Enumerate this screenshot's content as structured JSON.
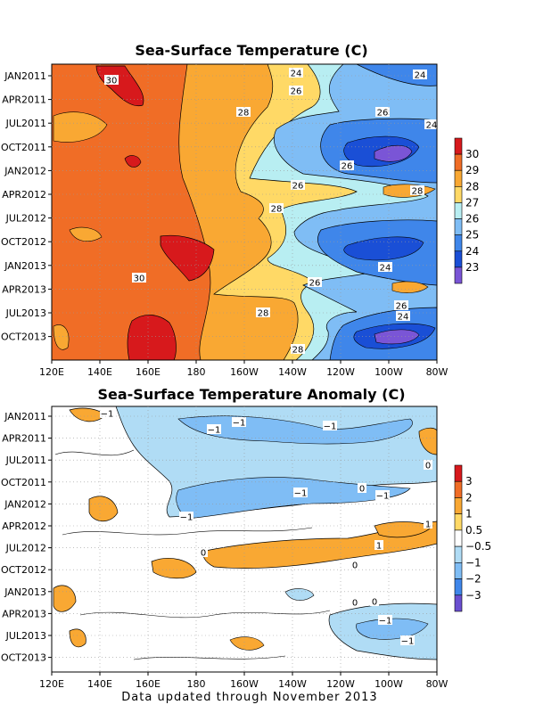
{
  "footer": "Data updated through November 2013",
  "chart_data": [
    {
      "type": "heatmap",
      "title": "Sea-Surface Temperature (C)",
      "x_ticks": [
        "120E",
        "140E",
        "160E",
        "180",
        "160W",
        "140W",
        "120W",
        "100W",
        "80W"
      ],
      "y_ticks": [
        "JAN2011",
        "APR2011",
        "JUL2011",
        "OCT2011",
        "JAN2012",
        "APR2012",
        "JUL2012",
        "OCT2012",
        "JAN2013",
        "APR2013",
        "JUL2013",
        "OCT2013"
      ],
      "colorbar": {
        "ticks": [
          "30",
          "29",
          "28",
          "27",
          "26",
          "25",
          "24",
          "23"
        ],
        "colors": [
          "#d7191c",
          "#f06d26",
          "#f9a833",
          "#ffd966",
          "#b8eef2",
          "#7fbdf5",
          "#3f86ea",
          "#1a4fd6",
          "#7a55d6"
        ]
      },
      "contour_labels": [
        "30",
        "24",
        "26",
        "28",
        "26",
        "24",
        "24",
        "26",
        "26",
        "28",
        "28",
        "24",
        "30",
        "26",
        "28",
        "26",
        "24",
        "28"
      ]
    },
    {
      "type": "heatmap",
      "title": "Sea-Surface Temperature Anomaly (C)",
      "x_ticks": [
        "120E",
        "140E",
        "160E",
        "180",
        "160W",
        "140W",
        "120W",
        "100W",
        "80W"
      ],
      "y_ticks": [
        "JAN2011",
        "APR2011",
        "JUL2011",
        "OCT2011",
        "JAN2012",
        "APR2012",
        "JUL2012",
        "OCT2012",
        "JAN2013",
        "APR2013",
        "JUL2013",
        "OCT2013"
      ],
      "colorbar": {
        "ticks": [
          "3",
          "2",
          "1",
          "0.5",
          "−0.5",
          "−1",
          "−2",
          "−3"
        ],
        "colors": [
          "#d7191c",
          "#f06d26",
          "#f9a833",
          "#ffd966",
          "#ffffff",
          "#b0dcf5",
          "#7fbdf5",
          "#3f86ea",
          "#6a4fd0"
        ]
      },
      "contour_labels": [
        "−1",
        "−1",
        "−1",
        "−1",
        "−1",
        "−1",
        "−1",
        "0",
        "0",
        "1",
        "1",
        "−1",
        "−1",
        "0",
        "0",
        "0",
        "0"
      ]
    }
  ]
}
